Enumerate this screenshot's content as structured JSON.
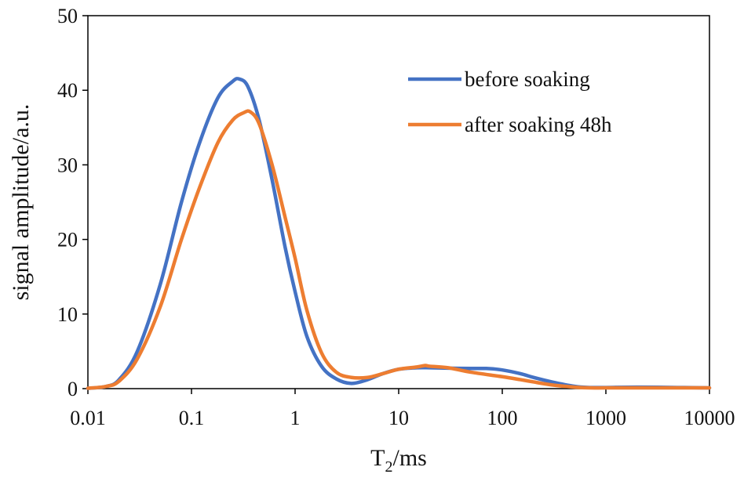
{
  "chart_data": {
    "type": "line",
    "title": "",
    "xlabel": {
      "main": "T",
      "sub": "2",
      "rest": "/ms"
    },
    "ylabel": "signal amplitude/a.u.",
    "xscale": "log",
    "xlim": [
      0.01,
      10000
    ],
    "ylim": [
      0,
      50
    ],
    "grid": false,
    "legend_position": "top-right",
    "x_ticks": [
      {
        "value": 0.01,
        "label": "0.01"
      },
      {
        "value": 0.1,
        "label": "0.1"
      },
      {
        "value": 1,
        "label": "1"
      },
      {
        "value": 10,
        "label": "10"
      },
      {
        "value": 100,
        "label": "100"
      },
      {
        "value": 1000,
        "label": "1000"
      },
      {
        "value": 10000,
        "label": "10000"
      }
    ],
    "y_ticks": [
      {
        "value": 0,
        "label": "0"
      },
      {
        "value": 10,
        "label": "10"
      },
      {
        "value": 20,
        "label": "20"
      },
      {
        "value": 30,
        "label": "30"
      },
      {
        "value": 40,
        "label": "40"
      },
      {
        "value": 50,
        "label": "50"
      }
    ],
    "series": [
      {
        "name": "before soaking",
        "color": "#4472C4",
        "x": [
          0.01,
          0.015,
          0.02,
          0.03,
          0.05,
          0.08,
          0.12,
          0.18,
          0.25,
          0.29,
          0.35,
          0.45,
          0.6,
          0.8,
          1.0,
          1.3,
          1.8,
          2.5,
          3.5,
          5,
          7,
          10,
          15,
          20,
          30,
          50,
          70,
          100,
          150,
          200,
          300,
          500,
          700,
          1000,
          2000,
          5000,
          10000
        ],
        "values": [
          0.05,
          0.3,
          1.2,
          5,
          14,
          25,
          33,
          39,
          41.2,
          41.5,
          40.5,
          36,
          28,
          19,
          13,
          7,
          3,
          1.3,
          0.7,
          1.2,
          2.0,
          2.6,
          2.8,
          2.8,
          2.75,
          2.7,
          2.7,
          2.5,
          2.0,
          1.5,
          0.9,
          0.3,
          0.15,
          0.15,
          0.2,
          0.15,
          0.1
        ]
      },
      {
        "name": "after soaking 48h",
        "color": "#ED7D31",
        "x": [
          0.01,
          0.015,
          0.02,
          0.03,
          0.05,
          0.08,
          0.12,
          0.18,
          0.25,
          0.32,
          0.37,
          0.45,
          0.6,
          0.8,
          1.0,
          1.3,
          1.8,
          2.5,
          3.5,
          5,
          7,
          10,
          15,
          18,
          20,
          30,
          50,
          100,
          150,
          200,
          300,
          500,
          700,
          1000,
          2000,
          5000,
          10000
        ],
        "values": [
          0.05,
          0.3,
          1.0,
          4,
          11,
          20,
          27,
          33,
          36,
          37,
          37.1,
          35.5,
          30,
          23,
          17.5,
          10.5,
          4.8,
          2.2,
          1.5,
          1.5,
          2.0,
          2.6,
          2.9,
          3.1,
          3.0,
          2.8,
          2.2,
          1.6,
          1.2,
          0.9,
          0.5,
          0.2,
          0.1,
          0.1,
          0.1,
          0.1,
          0.1
        ]
      }
    ]
  }
}
